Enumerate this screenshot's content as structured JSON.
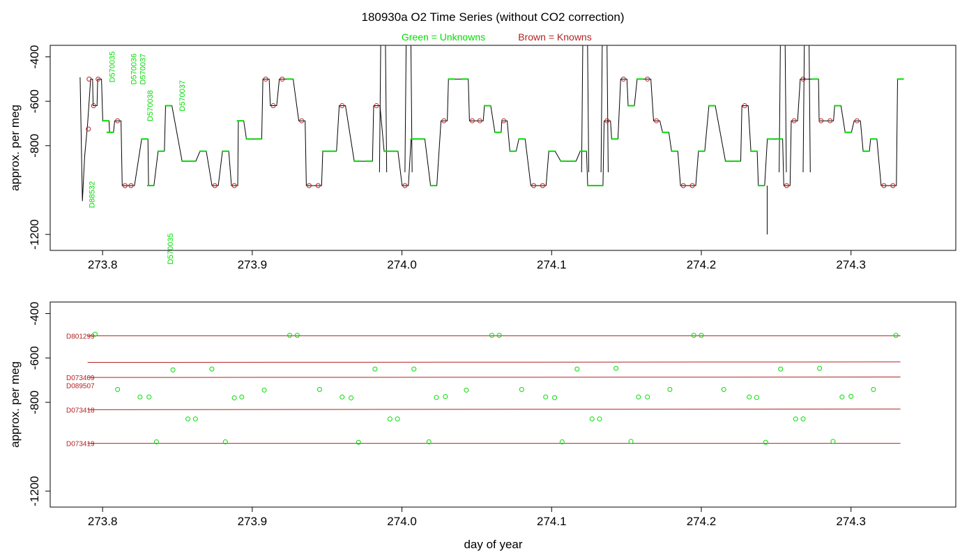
{
  "title": "180930a   O2 Time Series (without CO2 correction)",
  "legend": {
    "unknowns": "Green = Unknowns",
    "knowns": "Brown = Knowns"
  },
  "colors": {
    "unknown": "#00dd00",
    "known": "#b22222",
    "trace": "#000000",
    "background": "#ffffff"
  },
  "chart_data": [
    {
      "type": "line",
      "panel": "top",
      "title": "180930a   O2 Time Series (without CO2 correction)",
      "xlabel": "",
      "ylabel": "approx. per meg",
      "xlim": [
        273.765,
        274.37
      ],
      "ylim": [
        -1272,
        -348
      ],
      "xticks": [
        273.8,
        273.9,
        274.0,
        274.1,
        274.2,
        274.3
      ],
      "xtick_labels": [
        "273.8",
        "273.9",
        "274.0",
        "274.1",
        "274.2",
        "274.3"
      ],
      "yticks": [
        -400,
        -600,
        -800,
        -1200
      ],
      "ytick_labels": [
        "-400",
        "-600",
        "-800",
        "-1200"
      ],
      "sample_levels": {
        "ref1": -500,
        "ref2": -620,
        "ref3": -688,
        "ref4": -740,
        "ref5": -770,
        "ref6": -825,
        "ref7": -870,
        "ref8": -980
      },
      "sequence": [
        [
          "ref1",
          273.791
        ],
        [
          "ref2",
          273.794
        ],
        [
          "ref1",
          273.797
        ],
        [
          "ref3",
          273.802
        ],
        [
          "ref4",
          273.805
        ],
        [
          "ref3",
          273.81
        ],
        [
          "ref8",
          273.815
        ],
        [
          "ref8",
          273.819
        ],
        [
          "ref5",
          273.828
        ],
        [
          "ref8",
          273.832
        ],
        [
          "ref6",
          273.839
        ],
        [
          "ref2",
          273.844
        ],
        [
          "ref7",
          273.855
        ],
        [
          "ref7",
          273.86
        ],
        [
          "ref6",
          273.867
        ],
        [
          "ref8",
          273.875
        ],
        [
          "ref6",
          273.882
        ],
        [
          "ref8",
          273.888
        ],
        [
          "ref3",
          273.892
        ],
        [
          "ref5",
          273.898
        ],
        [
          "ref5",
          273.904
        ],
        [
          "ref1",
          273.909
        ],
        [
          "ref2",
          273.914
        ],
        [
          "ref1",
          273.92
        ],
        [
          "ref1",
          273.925
        ],
        [
          "ref3",
          273.933
        ],
        [
          "ref8",
          273.938
        ],
        [
          "ref8",
          273.944
        ],
        [
          "ref6",
          273.949
        ],
        [
          "ref6",
          273.954
        ],
        [
          "ref2",
          273.96
        ],
        [
          "ref7",
          273.97
        ],
        [
          "ref7",
          273.978
        ],
        [
          "ref2",
          273.983
        ],
        [
          "ref6",
          273.99
        ],
        [
          "ref6",
          273.995
        ],
        [
          "ref8",
          274.002
        ],
        [
          "ref5",
          274.008
        ],
        [
          "ref5",
          274.013
        ],
        [
          "ref8",
          274.021
        ],
        [
          "ref3",
          274.028
        ],
        [
          "ref1",
          274.033
        ],
        [
          "ref1",
          274.042
        ],
        [
          "ref3",
          274.047
        ],
        [
          "ref3",
          274.052
        ],
        [
          "ref2",
          274.057
        ],
        [
          "ref4",
          274.064
        ],
        [
          "ref3",
          274.068
        ],
        [
          "ref6",
          274.074
        ],
        [
          "ref5",
          274.08
        ],
        [
          "ref8",
          274.088
        ],
        [
          "ref8",
          274.094
        ],
        [
          "ref6",
          274.1
        ],
        [
          "ref7",
          274.108
        ],
        [
          "ref7",
          274.114
        ],
        [
          "ref6",
          274.121
        ],
        [
          "ref8",
          274.126
        ],
        [
          "ref8",
          274.132
        ],
        [
          "ref3",
          274.137
        ],
        [
          "ref5",
          274.142
        ],
        [
          "ref1",
          274.148
        ],
        [
          "ref2",
          274.153
        ],
        [
          "ref1",
          274.159
        ],
        [
          "ref1",
          274.164
        ],
        [
          "ref3",
          274.17
        ],
        [
          "ref4",
          274.176
        ],
        [
          "ref6",
          274.182
        ],
        [
          "ref8",
          274.188
        ],
        [
          "ref8",
          274.194
        ],
        [
          "ref6",
          274.2
        ],
        [
          "ref2",
          274.207
        ],
        [
          "ref7",
          274.218
        ],
        [
          "ref7",
          274.224
        ],
        [
          "ref2",
          274.229
        ],
        [
          "ref6",
          274.235
        ],
        [
          "ref8",
          274.24
        ],
        [
          "ref5",
          274.246
        ],
        [
          "ref5",
          274.252
        ],
        [
          "ref8",
          274.257
        ],
        [
          "ref3",
          274.262
        ],
        [
          "ref1",
          274.268
        ],
        [
          "ref1",
          274.276
        ],
        [
          "ref3",
          274.28
        ],
        [
          "ref3",
          274.286
        ],
        [
          "ref2",
          274.291
        ],
        [
          "ref4",
          274.298
        ],
        [
          "ref3",
          274.304
        ],
        [
          "ref6",
          274.31
        ],
        [
          "ref5",
          274.315
        ],
        [
          "ref8",
          274.322
        ],
        [
          "ref8",
          274.328
        ],
        [
          "ref1",
          274.333
        ]
      ],
      "spikes": [
        {
          "x0": 273.985,
          "x1": 273.989,
          "y": -350
        },
        {
          "x0": 274.002,
          "x1": 274.006,
          "y": -350
        },
        {
          "x0": 274.12,
          "x1": 274.124,
          "y": -350
        },
        {
          "x0": 274.133,
          "x1": 274.137,
          "y": -350
        },
        {
          "x0": 274.252,
          "x1": 274.256,
          "y": -350
        },
        {
          "x0": 274.268,
          "x1": 274.272,
          "y": -350
        }
      ],
      "start_transient": [
        [
          273.785,
          -492
        ],
        [
          273.7865,
          -1050
        ],
        [
          273.788,
          -850
        ],
        [
          273.79,
          -700
        ],
        [
          273.792,
          -500
        ]
      ],
      "dip": {
        "x": 274.244,
        "y": -1200
      },
      "early_marker": {
        "x": 273.7905,
        "y": -725
      },
      "annotations": [
        {
          "text": "D88532",
          "x": 273.7945,
          "y": -960,
          "color": "#00dd00"
        },
        {
          "text": "D570035",
          "x": 273.808,
          "y": -375,
          "color": "#00dd00"
        },
        {
          "text": "D570036",
          "x": 273.8225,
          "y": -385,
          "color": "#00dd00"
        },
        {
          "text": "D570037",
          "x": 273.8285,
          "y": -385,
          "color": "#00dd00"
        },
        {
          "text": "D570038",
          "x": 273.8335,
          "y": -550,
          "color": "#00dd00"
        },
        {
          "text": "D570035",
          "x": 273.847,
          "y": -1195,
          "color": "#00dd00"
        },
        {
          "text": "D570037",
          "x": 273.855,
          "y": -505,
          "color": "#00dd00"
        }
      ]
    },
    {
      "type": "scatter",
      "panel": "bottom",
      "xlabel": "day of year",
      "ylabel": "approx. per meg",
      "xlim": [
        273.765,
        274.37
      ],
      "ylim": [
        -1272,
        -348
      ],
      "xticks": [
        273.8,
        273.9,
        274.0,
        274.1,
        274.2,
        274.3
      ],
      "xtick_labels": [
        "273.8",
        "273.9",
        "274.0",
        "274.1",
        "274.2",
        "274.3"
      ],
      "yticks": [
        -400,
        -600,
        -800,
        -1200
      ],
      "ytick_labels": [
        "-400",
        "-600",
        "-800",
        "-1200"
      ],
      "reference_lines": [
        {
          "label": "D801299",
          "x0": 273.79,
          "x1": 274.333,
          "y0": -500,
          "y1": -500
        },
        {
          "label": "",
          "x0": 273.79,
          "x1": 274.333,
          "y0": -620,
          "y1": -618
        },
        {
          "label": "D073409",
          "x0": 273.79,
          "x1": 274.333,
          "y0": -688,
          "y1": -686
        },
        {
          "label": "D089507",
          "x0": 273.79,
          "x1": 274.333,
          "y0": null,
          "y1": null,
          "label_y": -723
        },
        {
          "label": "D073418",
          "x0": 273.79,
          "x1": 274.333,
          "y0": -833,
          "y1": -830
        },
        {
          "label": "D073419",
          "x0": 273.79,
          "x1": 274.333,
          "y0": -985,
          "y1": -985
        }
      ],
      "unknown_points": [
        [
          273.795,
          -493
        ],
        [
          273.925,
          -498
        ],
        [
          273.93,
          -498
        ],
        [
          274.06,
          -498
        ],
        [
          274.065,
          -498
        ],
        [
          274.195,
          -498
        ],
        [
          274.2,
          -498
        ],
        [
          274.33,
          -498
        ],
        [
          273.847,
          -654
        ],
        [
          273.873,
          -650
        ],
        [
          273.982,
          -650
        ],
        [
          274.008,
          -650
        ],
        [
          274.117,
          -650
        ],
        [
          274.143,
          -647
        ],
        [
          274.253,
          -650
        ],
        [
          274.279,
          -647
        ],
        [
          273.81,
          -742
        ],
        [
          273.945,
          -742
        ],
        [
          274.08,
          -742
        ],
        [
          274.215,
          -742
        ],
        [
          274.315,
          -742
        ],
        [
          273.908,
          -745
        ],
        [
          274.043,
          -745
        ],
        [
          274.179,
          -742
        ],
        [
          273.825,
          -776
        ],
        [
          273.831,
          -776
        ],
        [
          273.888,
          -780
        ],
        [
          273.893,
          -776
        ],
        [
          273.96,
          -776
        ],
        [
          273.966,
          -780
        ],
        [
          274.023,
          -778
        ],
        [
          274.029,
          -774
        ],
        [
          274.096,
          -776
        ],
        [
          274.102,
          -779
        ],
        [
          274.158,
          -776
        ],
        [
          274.164,
          -776
        ],
        [
          274.232,
          -776
        ],
        [
          274.237,
          -778
        ],
        [
          274.294,
          -776
        ],
        [
          274.3,
          -773
        ],
        [
          273.857,
          -875
        ],
        [
          273.862,
          -875
        ],
        [
          273.992,
          -875
        ],
        [
          273.997,
          -875
        ],
        [
          274.127,
          -875
        ],
        [
          274.132,
          -875
        ],
        [
          274.263,
          -875
        ],
        [
          274.268,
          -875
        ],
        [
          273.836,
          -978
        ],
        [
          273.882,
          -978
        ],
        [
          273.971,
          -980
        ],
        [
          274.018,
          -978
        ],
        [
          274.107,
          -978
        ],
        [
          274.153,
          -976
        ],
        [
          274.243,
          -980
        ],
        [
          274.288,
          -976
        ]
      ]
    }
  ]
}
